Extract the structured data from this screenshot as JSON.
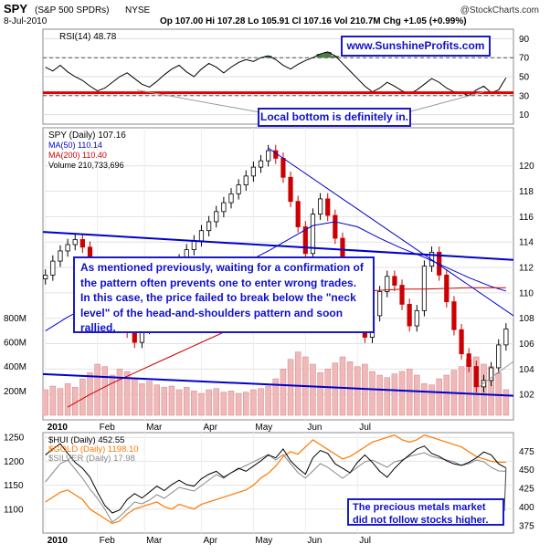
{
  "header": {
    "symbol": "SPY",
    "name": "(S&P 500 SPDRs)",
    "exchange": "NYSE",
    "copyright": "@StockCharts.com",
    "date": "8-Jul-2010",
    "quote": "Op 107.00  Hi 107.28  Lo 105.91  Cl 107.16  Vol 210.7M  Chg +1.05 (+0.99%)"
  },
  "chart_data": [
    {
      "type": "line",
      "panel": "rsi",
      "legend": [
        "RSI(14) 48.78"
      ],
      "ylim": [
        0,
        100
      ],
      "ticks": [
        "90",
        "70",
        "50",
        "30",
        "10"
      ],
      "tick_values": [
        90,
        70,
        50,
        30,
        10
      ],
      "reference_lines": [
        70,
        30
      ],
      "support_level": 33,
      "series": [
        {
          "name": "RSI(14)",
          "x": [
            1,
            4,
            7,
            10,
            13,
            16,
            19,
            22,
            25,
            28,
            31,
            34,
            37,
            40,
            43,
            46,
            49,
            52,
            55,
            58,
            61,
            64,
            67,
            70,
            73,
            76,
            79,
            82,
            85,
            88,
            91,
            94,
            97,
            100,
            103,
            106,
            109,
            112,
            115,
            118,
            121,
            124,
            127,
            130,
            133,
            136,
            139,
            142,
            145,
            148,
            151,
            154,
            157,
            160,
            163,
            166,
            169,
            172,
            175,
            178,
            181,
            184,
            187
          ],
          "values": [
            60,
            56,
            62,
            55,
            50,
            46,
            40,
            35,
            38,
            44,
            50,
            54,
            48,
            42,
            39,
            45,
            52,
            58,
            62,
            55,
            50,
            58,
            64,
            60,
            54,
            60,
            65,
            68,
            66,
            70,
            72,
            68,
            62,
            58,
            63,
            67,
            70,
            74,
            76,
            72,
            64,
            56,
            48,
            40,
            34,
            38,
            44,
            40,
            35,
            32,
            36,
            42,
            48,
            44,
            38,
            34,
            33,
            30,
            36,
            40,
            33,
            36,
            48.78
          ]
        }
      ],
      "watermark": "www.SunshineProfits.com",
      "annotation": "Local bottom is definitely in."
    },
    {
      "type": "candlestick",
      "panel": "price",
      "legend": [
        "SPY (Daily) 107.16",
        "MA(50) 110.14",
        "MA(200) 110.40",
        "Volume 210,733,696"
      ],
      "ylim": [
        100,
        123
      ],
      "ticks": [
        "120",
        "118",
        "116",
        "114",
        "112",
        "110",
        "108",
        "106",
        "104",
        "102"
      ],
      "tick_values": [
        120,
        118,
        116,
        114,
        112,
        110,
        108,
        106,
        104,
        102
      ],
      "volume_ticks": [
        "800M",
        "600M",
        "400M",
        "200M"
      ],
      "volume_tick_values": [
        800,
        600,
        400,
        200
      ],
      "volume_max": 900,
      "x_labels": [
        "2010",
        "Feb",
        "Mar",
        "Apr",
        "May",
        "Jun",
        "Jul"
      ],
      "x_label_days": [
        1,
        22,
        41,
        64,
        85,
        106,
        127
      ],
      "colors": {
        "up": "#000000",
        "down": "#cc0000",
        "ma50": "#0000cc",
        "ma200": "#cc0000",
        "trend": "#0000cc",
        "volume": "#f0b8b8"
      },
      "series": [
        {
          "name": "SPY (Daily)",
          "x": [
            1,
            4,
            7,
            10,
            13,
            16,
            19,
            22,
            25,
            28,
            31,
            34,
            37,
            40,
            43,
            46,
            49,
            52,
            55,
            58,
            61,
            64,
            67,
            70,
            73,
            76,
            79,
            82,
            85,
            88,
            91,
            94,
            97,
            100,
            103,
            106,
            109,
            112,
            115,
            118,
            121,
            124,
            127,
            130,
            133,
            136,
            139,
            142,
            145,
            148,
            151,
            154,
            157,
            160,
            163,
            166,
            169,
            172,
            175,
            178,
            181,
            184,
            187
          ],
          "values": [
            111.4,
            112.5,
            113.3,
            113.8,
            114.2,
            113.6,
            111.8,
            110.2,
            109.4,
            108.6,
            107.8,
            106.9,
            106.1,
            107.2,
            108.3,
            109.4,
            110.6,
            111.8,
            112.6,
            113.4,
            114.1,
            114.9,
            115.6,
            116.4,
            117.1,
            117.8,
            118.5,
            119.2,
            119.9,
            120.4,
            121.2,
            120.6,
            119.1,
            117.2,
            115.2,
            113.1,
            116.2,
            117.4,
            116.1,
            114.3,
            112.2,
            110.1,
            108.3,
            106.5,
            108.2,
            110.1,
            111.3,
            110.6,
            109.1,
            107.4,
            108.6,
            112.1,
            113.2,
            111.4,
            109.3,
            107.1,
            105.2,
            104.2,
            102.6,
            103.1,
            104.1,
            105.9,
            107.16
          ]
        },
        {
          "name": "MA(50)",
          "x": [
            1,
            10,
            19,
            28,
            37,
            46,
            55,
            64,
            73,
            82,
            91,
            100,
            109,
            118,
            127,
            136,
            145,
            154,
            163,
            172,
            181,
            187
          ],
          "values": [
            107.0,
            108.1,
            109.0,
            109.6,
            109.8,
            110.0,
            110.3,
            110.9,
            111.6,
            112.4,
            113.3,
            114.3,
            115.3,
            115.6,
            115.2,
            114.3,
            113.5,
            112.8,
            112.0,
            111.2,
            110.5,
            110.14
          ]
        },
        {
          "name": "MA(200)",
          "x": [
            10,
            19,
            28,
            37,
            46,
            55,
            64,
            73,
            82,
            91,
            100,
            109,
            118,
            127,
            136,
            145,
            154,
            163,
            172,
            181,
            187
          ],
          "values": [
            101.0,
            102.0,
            102.9,
            103.7,
            104.5,
            105.3,
            106.1,
            106.9,
            107.7,
            108.4,
            109.1,
            109.6,
            109.9,
            110.1,
            110.2,
            110.3,
            110.3,
            110.35,
            110.4,
            110.4,
            110.4
          ]
        },
        {
          "name": "Volume",
          "x": [
            1,
            4,
            7,
            10,
            13,
            16,
            19,
            22,
            25,
            28,
            31,
            34,
            37,
            40,
            43,
            46,
            49,
            52,
            55,
            58,
            61,
            64,
            67,
            70,
            73,
            76,
            79,
            82,
            85,
            88,
            91,
            94,
            97,
            100,
            103,
            106,
            109,
            112,
            115,
            118,
            121,
            124,
            127,
            130,
            133,
            136,
            139,
            142,
            145,
            148,
            151,
            154,
            157,
            160,
            163,
            166,
            169,
            172,
            175,
            178,
            181,
            184,
            187
          ],
          "values": [
            210,
            240,
            220,
            260,
            230,
            300,
            350,
            420,
            400,
            330,
            380,
            360,
            300,
            260,
            280,
            250,
            230,
            240,
            210,
            230,
            200,
            180,
            210,
            220,
            190,
            200,
            180,
            190,
            210,
            220,
            240,
            300,
            380,
            460,
            520,
            480,
            420,
            350,
            380,
            430,
            480,
            440,
            400,
            420,
            360,
            330,
            310,
            340,
            360,
            380,
            330,
            260,
            250,
            300,
            330,
            370,
            400,
            460,
            480,
            420,
            400,
            350,
            210.7
          ]
        }
      ],
      "annotation": "As mentioned previously, waiting for a confirmation of the pattern often prevents one to enter wrong trades. In this case, the price failed to break below the \"neck level\" of the head-and-shoulders pattern and soon rallied."
    },
    {
      "type": "line",
      "panel": "metals",
      "legend": [
        "$HUI (Daily) 452.55",
        "$GOLD (Daily) 1198.10",
        "$SILVER (Daily) 17.98"
      ],
      "legend_colors": [
        "#000000",
        "#ff7700",
        "#888888"
      ],
      "left_ylim": [
        1050,
        1260
      ],
      "left_ticks": [
        "1250",
        "1200",
        "1150",
        "1100"
      ],
      "left_tick_values": [
        1250,
        1200,
        1150,
        1100
      ],
      "right_ylim": [
        365,
        500
      ],
      "right_ticks": [
        "475",
        "450",
        "425",
        "400",
        "375"
      ],
      "right_tick_values": [
        475,
        450,
        425,
        400,
        375
      ],
      "x_labels": [
        "2010",
        "Feb",
        "Mar",
        "Apr",
        "May",
        "Jun",
        "Jul"
      ],
      "series": [
        {
          "name": "$HUI (Daily)",
          "x": [
            1,
            4,
            7,
            10,
            13,
            16,
            19,
            22,
            25,
            28,
            31,
            34,
            37,
            40,
            43,
            46,
            49,
            52,
            55,
            58,
            61,
            64,
            67,
            70,
            73,
            76,
            79,
            82,
            85,
            88,
            91,
            94,
            97,
            100,
            103,
            106,
            109,
            112,
            115,
            118,
            121,
            124,
            127,
            130,
            133,
            136,
            139,
            142,
            145,
            148,
            151,
            154,
            157,
            160,
            163,
            166,
            169,
            172,
            175,
            178,
            181,
            184,
            187
          ],
          "values": [
            470,
            478,
            485,
            472,
            460,
            452,
            440,
            420,
            402,
            392,
            396,
            410,
            418,
            412,
            420,
            428,
            422,
            430,
            436,
            430,
            428,
            438,
            444,
            448,
            440,
            446,
            452,
            448,
            455,
            462,
            470,
            466,
            478,
            462,
            452,
            444,
            466,
            476,
            472,
            458,
            452,
            446,
            460,
            470,
            460,
            448,
            440,
            452,
            462,
            470,
            478,
            482,
            472,
            468,
            462,
            458,
            456,
            460,
            466,
            474,
            470,
            458,
            452.55
          ]
        },
        {
          "name": "$GOLD (Daily)",
          "x": [
            1,
            4,
            7,
            10,
            13,
            16,
            19,
            22,
            25,
            28,
            31,
            34,
            37,
            40,
            43,
            46,
            49,
            52,
            55,
            58,
            61,
            64,
            67,
            70,
            73,
            76,
            79,
            82,
            85,
            88,
            91,
            94,
            97,
            100,
            103,
            106,
            109,
            112,
            115,
            118,
            121,
            124,
            127,
            130,
            133,
            136,
            139,
            142,
            145,
            148,
            151,
            154,
            157,
            160,
            163,
            166,
            169,
            172,
            175,
            178,
            181,
            184,
            187
          ],
          "values": [
            1115,
            1125,
            1135,
            1140,
            1130,
            1120,
            1100,
            1090,
            1080,
            1070,
            1075,
            1090,
            1100,
            1105,
            1110,
            1115,
            1105,
            1100,
            1110,
            1105,
            1100,
            1110,
            1115,
            1120,
            1125,
            1130,
            1135,
            1140,
            1150,
            1165,
            1175,
            1190,
            1210,
            1220,
            1215,
            1230,
            1245,
            1235,
            1225,
            1215,
            1205,
            1210,
            1220,
            1230,
            1240,
            1245,
            1250,
            1255,
            1245,
            1240,
            1245,
            1255,
            1250,
            1245,
            1240,
            1235,
            1230,
            1220,
            1210,
            1205,
            1200,
            1198,
            1198.1
          ]
        },
        {
          "name": "$SILVER (Daily)",
          "x": [
            1,
            4,
            7,
            10,
            13,
            16,
            19,
            22,
            25,
            28,
            31,
            34,
            37,
            40,
            43,
            46,
            49,
            52,
            55,
            58,
            61,
            64,
            67,
            70,
            73,
            76,
            79,
            82,
            85,
            88,
            91,
            94,
            97,
            100,
            103,
            106,
            109,
            112,
            115,
            118,
            121,
            124,
            127,
            130,
            133,
            136,
            139,
            142,
            145,
            148,
            151,
            154,
            157,
            160,
            163,
            166,
            169,
            172,
            175,
            178,
            181,
            184,
            187
          ],
          "values": [
            17.4,
            17.9,
            18.4,
            18.6,
            18.1,
            17.6,
            17.0,
            16.5,
            15.9,
            15.2,
            15.5,
            15.9,
            16.3,
            16.2,
            16.4,
            16.7,
            16.5,
            16.8,
            17.1,
            17.0,
            16.9,
            17.2,
            17.5,
            17.8,
            17.6,
            17.9,
            18.1,
            18.3,
            18.5,
            18.7,
            18.9,
            18.6,
            18.9,
            18.4,
            17.9,
            17.6,
            18.0,
            18.4,
            18.2,
            17.9,
            17.6,
            17.9,
            18.2,
            18.5,
            18.6,
            18.4,
            18.2,
            18.5,
            18.6,
            18.8,
            18.9,
            19.0,
            18.8,
            18.7,
            18.6,
            18.5,
            18.3,
            18.4,
            18.6,
            18.5,
            18.2,
            18.0,
            17.98
          ]
        }
      ],
      "annotation": "The precious metals market did not follow stocks higher."
    }
  ]
}
